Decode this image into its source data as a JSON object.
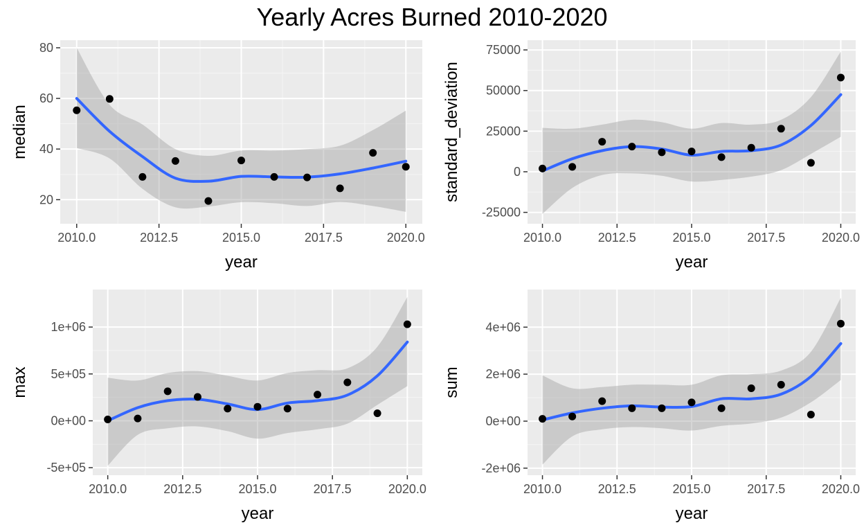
{
  "title": "Yearly Acres Burned 2010-2020",
  "colors": {
    "panel_bg": "#ebebeb",
    "grid_major": "#ffffff",
    "grid_minor": "#f5f5f5",
    "smooth_line": "#3366ff",
    "ribbon": "#999999",
    "points": "#000000"
  },
  "chart_data": [
    {
      "type": "scatter",
      "panel": "median",
      "xlabel": "year",
      "ylabel": "median",
      "xlim": [
        2009.5,
        2020.5
      ],
      "ylim": [
        10.5,
        83
      ],
      "x_ticks": [
        2010,
        2012.5,
        2015,
        2017.5,
        2020
      ],
      "x_tick_labels": [
        "2010.0",
        "2012.5",
        "2015.0",
        "2017.5",
        "2020.0"
      ],
      "y_ticks": [
        20,
        40,
        60,
        80
      ],
      "y_tick_labels": [
        "20",
        "40",
        "60",
        "80"
      ],
      "grid": true,
      "x": [
        2010,
        2011,
        2012,
        2013,
        2014,
        2015,
        2016,
        2017,
        2018,
        2019,
        2020
      ],
      "y": [
        55.3,
        59.8,
        29,
        35.3,
        19.5,
        35.5,
        29,
        28.8,
        24.5,
        38.5,
        33
      ],
      "smooth": {
        "x": [
          2010,
          2011,
          2012,
          2013,
          2014,
          2015,
          2016,
          2017,
          2018,
          2019,
          2020
        ],
        "y": [
          60,
          47,
          37,
          28.5,
          27.3,
          29.2,
          29,
          28.9,
          30.2,
          32.5,
          35.2
        ],
        "lower": [
          40.4,
          36.3,
          24.3,
          17,
          17.3,
          19,
          18.6,
          17.5,
          19.1,
          17.5,
          15.2
        ],
        "upper": [
          80,
          57.5,
          49.7,
          40,
          37.3,
          39.4,
          39.4,
          40,
          41.3,
          47.5,
          55.2
        ]
      }
    },
    {
      "type": "scatter",
      "panel": "standard_deviation",
      "xlabel": "year",
      "ylabel": "standard_deviation",
      "xlim": [
        2009.5,
        2020.5
      ],
      "ylim": [
        -32000,
        81000
      ],
      "x_ticks": [
        2010,
        2012.5,
        2015,
        2017.5,
        2020
      ],
      "x_tick_labels": [
        "2010.0",
        "2012.5",
        "2015.0",
        "2017.5",
        "2020.0"
      ],
      "y_ticks": [
        -25000,
        0,
        25000,
        50000,
        75000
      ],
      "y_tick_labels": [
        "-25000",
        "0",
        "25000",
        "50000",
        "75000"
      ],
      "grid": true,
      "x": [
        2010,
        2011,
        2012,
        2013,
        2014,
        2015,
        2016,
        2017,
        2018,
        2019,
        2020
      ],
      "y": [
        2000,
        3000,
        18500,
        15500,
        12000,
        12500,
        9000,
        14800,
        26500,
        5500,
        58000
      ],
      "smooth": {
        "x": [
          2010,
          2011,
          2012,
          2013,
          2014,
          2015,
          2016,
          2017,
          2018,
          2019,
          2020
        ],
        "y": [
          500,
          8000,
          13000,
          15500,
          14000,
          10200,
          12500,
          13000,
          16500,
          28500,
          47500
        ],
        "lower": [
          -26000,
          -10000,
          -2000,
          -1000,
          -2500,
          -6000,
          -5000,
          -3000,
          1000,
          11000,
          21500
        ],
        "upper": [
          27000,
          26500,
          29000,
          32000,
          30500,
          26500,
          30000,
          29000,
          32000,
          46000,
          74000
        ]
      }
    },
    {
      "type": "scatter",
      "panel": "max",
      "xlabel": "year",
      "ylabel": "max",
      "xlim": [
        2009.5,
        2020.5
      ],
      "ylim": [
        -580000,
        1400000
      ],
      "x_ticks": [
        2010,
        2012.5,
        2015,
        2017.5,
        2020
      ],
      "x_tick_labels": [
        "2010.0",
        "2012.5",
        "2015.0",
        "2017.5",
        "2020.0"
      ],
      "y_ticks": [
        -500000,
        0,
        500000,
        1000000
      ],
      "y_tick_labels": [
        "-5e+05",
        "0e+00",
        "5e+05",
        "1e+06"
      ],
      "grid": true,
      "x": [
        2010,
        2011,
        2012,
        2013,
        2014,
        2015,
        2016,
        2017,
        2018,
        2019,
        2020
      ],
      "y": [
        15000,
        25000,
        315000,
        255000,
        130000,
        150000,
        130000,
        280000,
        410000,
        80000,
        1030000
      ],
      "smooth": {
        "x": [
          2010,
          2011,
          2012,
          2013,
          2014,
          2015,
          2016,
          2017,
          2018,
          2019,
          2020
        ],
        "y": [
          0,
          140000,
          215000,
          230000,
          180000,
          120000,
          190000,
          215000,
          275000,
          480000,
          840000
        ],
        "lower": [
          -480000,
          -150000,
          -80000,
          -60000,
          -110000,
          -190000,
          -130000,
          -90000,
          -30000,
          170000,
          370000
        ],
        "upper": [
          460000,
          430000,
          510000,
          530000,
          480000,
          430000,
          510000,
          540000,
          560000,
          790000,
          1320000
        ]
      }
    },
    {
      "type": "scatter",
      "panel": "sum",
      "xlabel": "year",
      "ylabel": "sum",
      "xlim": [
        2009.5,
        2020.5
      ],
      "ylim": [
        -2300000,
        5600000
      ],
      "x_ticks": [
        2010,
        2012.5,
        2015,
        2017.5,
        2020
      ],
      "x_tick_labels": [
        "2010.0",
        "2012.5",
        "2015.0",
        "2017.5",
        "2020.0"
      ],
      "y_ticks": [
        -2000000,
        0,
        2000000,
        4000000
      ],
      "y_tick_labels": [
        "-2e+06",
        "0e+00",
        "2e+06",
        "4e+06"
      ],
      "grid": true,
      "x": [
        2010,
        2011,
        2012,
        2013,
        2014,
        2015,
        2016,
        2017,
        2018,
        2019,
        2020
      ],
      "y": [
        100000,
        200000,
        850000,
        550000,
        550000,
        800000,
        550000,
        1400000,
        1550000,
        280000,
        4150000
      ],
      "smooth": {
        "x": [
          2010,
          2011,
          2012,
          2013,
          2014,
          2015,
          2016,
          2017,
          2018,
          2019,
          2020
        ],
        "y": [
          50000,
          350000,
          550000,
          650000,
          600000,
          620000,
          950000,
          950000,
          1150000,
          1900000,
          3300000
        ],
        "lower": [
          -1850000,
          -650000,
          -350000,
          -250000,
          -300000,
          -400000,
          -200000,
          -100000,
          150000,
          800000,
          1750000
        ],
        "upper": [
          1950000,
          1400000,
          1450000,
          1550000,
          1550000,
          1550000,
          1950000,
          2000000,
          2150000,
          2950000,
          5250000
        ]
      }
    }
  ]
}
